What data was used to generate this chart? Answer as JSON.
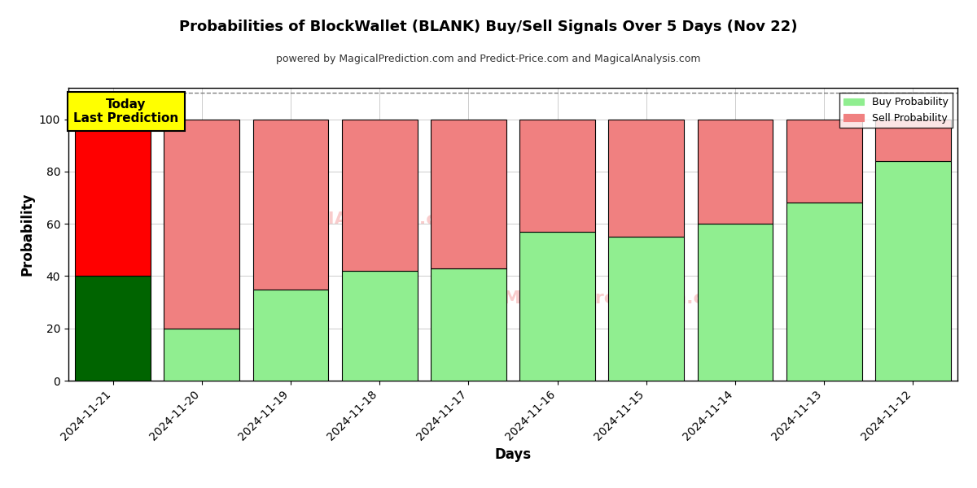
{
  "title": "Probabilities of BlockWallet (BLANK) Buy/Sell Signals Over 5 Days (Nov 22)",
  "subtitle": "powered by MagicalPrediction.com and Predict-Price.com and MagicalAnalysis.com",
  "xlabel": "Days",
  "ylabel": "Probability",
  "categories": [
    "2024-11-21",
    "2024-11-20",
    "2024-11-19",
    "2024-11-18",
    "2024-11-17",
    "2024-11-16",
    "2024-11-15",
    "2024-11-14",
    "2024-11-13",
    "2024-11-12"
  ],
  "buy_values": [
    40,
    20,
    35,
    42,
    43,
    57,
    55,
    60,
    68,
    84
  ],
  "sell_values": [
    60,
    80,
    65,
    58,
    57,
    43,
    45,
    40,
    32,
    16
  ],
  "today_buy_color": "#006400",
  "today_sell_color": "#ff0000",
  "buy_color": "#90EE90",
  "sell_color": "#F08080",
  "ylim": [
    0,
    112
  ],
  "yticks": [
    0,
    20,
    40,
    60,
    80,
    100
  ],
  "dashed_line_y": 110,
  "annotation_text": "Today\nLast Prediction",
  "annotation_color": "#ffff00",
  "legend_buy_label": "Buy Probability",
  "legend_sell_label": "Sell Probability",
  "background_color": "#ffffff",
  "grid_color": "#cccccc",
  "bar_edge_color": "#000000",
  "bar_width": 0.85
}
